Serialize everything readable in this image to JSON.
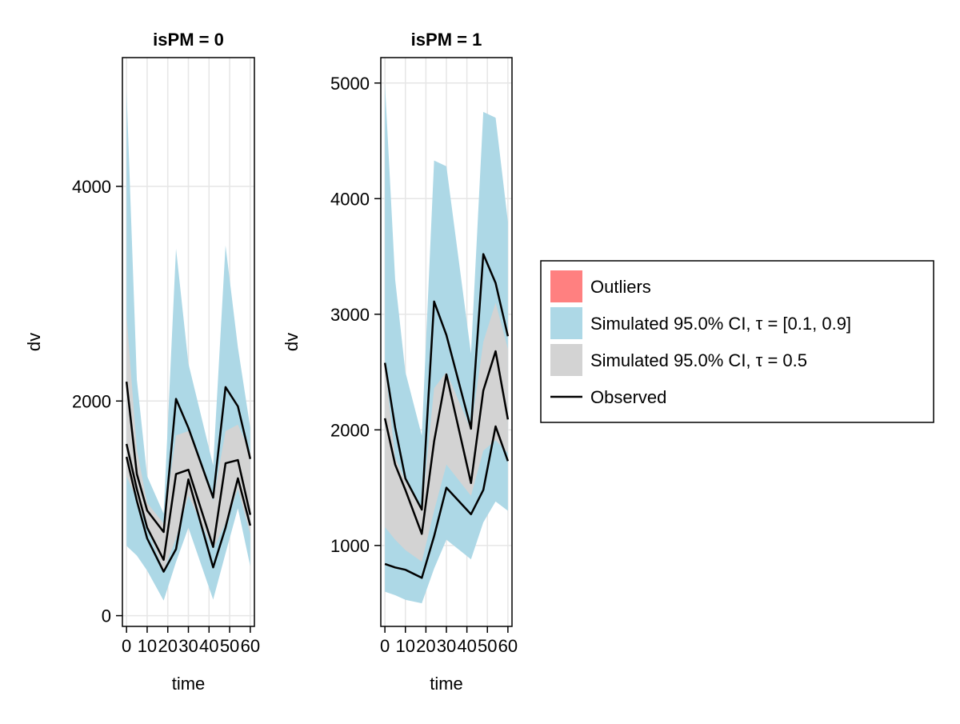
{
  "colors": {
    "outliers": "#ff8080",
    "outer_ci": "#add8e6",
    "median_ci": "#d3d3d3",
    "observed": "#000000"
  },
  "legend": {
    "placement": "right",
    "entries": [
      {
        "key": "outliers",
        "label": "Outliers",
        "kind": "patch"
      },
      {
        "key": "outer_ci",
        "label": "Simulated 95.0% CI, τ = [0.1, 0.9]",
        "kind": "patch"
      },
      {
        "key": "median_ci",
        "label": "Simulated 95.0% CI, τ = 0.5",
        "kind": "patch"
      },
      {
        "key": "observed",
        "label": "Observed",
        "kind": "line"
      }
    ]
  },
  "chart_data": [
    {
      "type": "area",
      "title": "isPM = 0",
      "xlabel": "time",
      "ylabel": "dv",
      "xlim": [
        -2,
        62
      ],
      "ylim": [
        -100,
        5200
      ],
      "grid": true,
      "x_ticks": [
        0,
        10,
        20,
        30,
        40,
        50,
        60
      ],
      "y_ticks": [
        0,
        2000,
        4000
      ],
      "x": [
        0,
        5,
        10,
        18,
        24,
        30,
        42,
        48,
        54,
        60
      ],
      "outer_band": {
        "lower": [
          650,
          560,
          420,
          140,
          500,
          820,
          150,
          580,
          1000,
          460
        ],
        "upper": [
          4900,
          2200,
          1300,
          950,
          3420,
          2350,
          1400,
          3450,
          2500,
          1750
        ]
      },
      "median_band": {
        "lower": [
          1300,
          1080,
          820,
          420,
          720,
          1120,
          620,
          860,
          1180,
          760
        ],
        "upper": [
          2800,
          1550,
          1050,
          860,
          1680,
          1720,
          1070,
          1720,
          1780,
          1520
        ]
      },
      "observed": [
        {
          "values": [
            2180,
            1320,
            980,
            780,
            2020,
            1750,
            1100,
            2130,
            1950,
            1460
          ]
        },
        {
          "values": [
            1600,
            1180,
            820,
            520,
            1320,
            1360,
            640,
            1420,
            1450,
            940
          ]
        },
        {
          "values": [
            1480,
            1070,
            720,
            410,
            620,
            1270,
            450,
            820,
            1280,
            840
          ]
        }
      ]
    },
    {
      "type": "area",
      "title": "isPM = 1",
      "xlabel": "time",
      "ylabel": "dv",
      "xlim": [
        -2,
        62
      ],
      "ylim": [
        300,
        5220
      ],
      "grid": true,
      "x_ticks": [
        0,
        10,
        20,
        30,
        40,
        50,
        60
      ],
      "y_ticks": [
        1000,
        2000,
        3000,
        4000,
        5000
      ],
      "x": [
        0,
        5,
        10,
        18,
        24,
        30,
        42,
        48,
        54,
        60
      ],
      "outer_band": {
        "lower": [
          600,
          570,
          530,
          500,
          800,
          1050,
          880,
          1200,
          1380,
          1300
        ],
        "upper": [
          5000,
          3300,
          2500,
          1950,
          4330,
          4280,
          2660,
          4750,
          4700,
          3800
        ]
      },
      "median_band": {
        "lower": [
          1160,
          1050,
          960,
          860,
          1300,
          1700,
          1430,
          1820,
          1910,
          1800
        ],
        "upper": [
          2560,
          1760,
          1560,
          1300,
          2360,
          2500,
          2000,
          2760,
          3100,
          2700
        ]
      },
      "observed": [
        {
          "values": [
            2580,
            2020,
            1580,
            1310,
            3110,
            2820,
            2010,
            3520,
            3270,
            2810
          ]
        },
        {
          "values": [
            2100,
            1700,
            1480,
            1100,
            1900,
            2480,
            1540,
            2340,
            2680,
            2090
          ]
        },
        {
          "values": [
            840,
            810,
            790,
            720,
            1080,
            1500,
            1270,
            1480,
            2030,
            1730
          ]
        }
      ]
    }
  ]
}
